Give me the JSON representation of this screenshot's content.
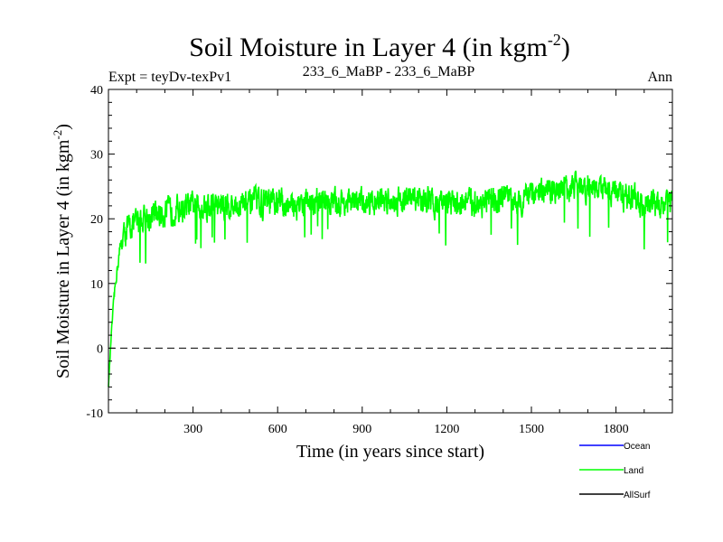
{
  "chart_data": {
    "type": "line",
    "title": "Soil Moisture in Layer 4 (in kgm",
    "title_superscript": "-2",
    "title_suffix": ")",
    "subtitle_left": "Expt = teyDv-texPv1",
    "subtitle_center": "233_6_MaBP - 233_6_MaBP",
    "subtitle_right": "Ann",
    "xlabel": "Time (in years since start)",
    "ylabel": "Soil Moisture in Layer 4 (in kgm",
    "ylabel_superscript": "-2",
    "ylabel_suffix": ")",
    "xlim": [
      0,
      2000
    ],
    "ylim": [
      -10,
      40
    ],
    "x_ticks": [
      300,
      600,
      900,
      1200,
      1500,
      1800
    ],
    "x_tick_labels": [
      "300",
      "600",
      "900",
      "1200",
      "1500",
      "1800"
    ],
    "y_ticks": [
      -10,
      0,
      10,
      20,
      30,
      40
    ],
    "y_tick_labels": [
      "-10",
      "0",
      "10",
      "20",
      "30",
      "40"
    ],
    "reference_line_y": 0,
    "legend": [
      {
        "name": "Ocean",
        "color": "#0000ff"
      },
      {
        "name": "Land",
        "color": "#00ff00"
      },
      {
        "name": "AllSurf",
        "color": "#000000"
      }
    ],
    "series": [
      {
        "name": "Land",
        "color": "#00ff00",
        "x": [
          0,
          10,
          20,
          30,
          40,
          50,
          60,
          80,
          100,
          130,
          160,
          200,
          250,
          300,
          350,
          400,
          450,
          500,
          550,
          600,
          650,
          700,
          750,
          800,
          850,
          900,
          950,
          1000,
          1050,
          1100,
          1150,
          1200,
          1250,
          1300,
          1350,
          1400,
          1450,
          1500,
          1550,
          1600,
          1650,
          1700,
          1750,
          1800,
          1850,
          1900,
          1950,
          2000
        ],
        "values": [
          -6,
          2,
          8,
          12,
          15,
          17,
          18,
          19,
          19.5,
          20,
          20.5,
          21,
          21.5,
          22,
          22,
          22,
          22,
          22.5,
          22.5,
          22.5,
          22,
          22.5,
          22.5,
          22.5,
          22.5,
          22.5,
          23,
          23,
          23,
          23,
          22.5,
          22.5,
          22.5,
          22.5,
          22.5,
          23,
          23,
          23.5,
          24,
          24.5,
          25,
          25,
          24.5,
          24,
          23,
          22.5,
          22.5,
          23
        ],
        "noise_amplitude": 3.2
      }
    ]
  }
}
